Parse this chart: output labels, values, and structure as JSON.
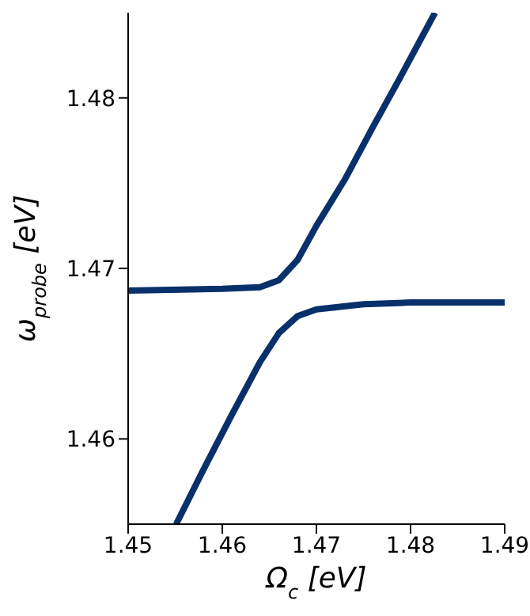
{
  "chart_data": {
    "type": "line",
    "xlabel": "Ω$_{c}$ [eV]",
    "ylabel": "ω$_{probe}$ [eV]",
    "xlim": [
      1.45,
      1.49
    ],
    "xticks": [
      1.45,
      1.46,
      1.47,
      1.48,
      1.49
    ],
    "ylim": [
      1.455,
      1.485
    ],
    "yticks": [
      1.46,
      1.47,
      1.48
    ],
    "grid": false,
    "legend": false,
    "marker": "none",
    "line_style": "solid",
    "series": [
      {
        "color": "#08306b",
        "x": [
          1.4551,
          1.458,
          1.461,
          1.464,
          1.466,
          1.468,
          1.47,
          1.475,
          1.48,
          1.49
        ],
        "values": [
          1.455,
          1.4582,
          1.4614,
          1.4645,
          1.4662,
          1.4672,
          1.4676,
          1.4679,
          1.468,
          1.468
        ]
      },
      {
        "color": "#08306b",
        "x": [
          1.45,
          1.46,
          1.464,
          1.466,
          1.468,
          1.47,
          1.473,
          1.476,
          1.479,
          1.4826
        ],
        "values": [
          1.4687,
          1.4688,
          1.4689,
          1.4693,
          1.4705,
          1.4725,
          1.4752,
          1.4783,
          1.4813,
          1.485
        ]
      }
    ]
  }
}
